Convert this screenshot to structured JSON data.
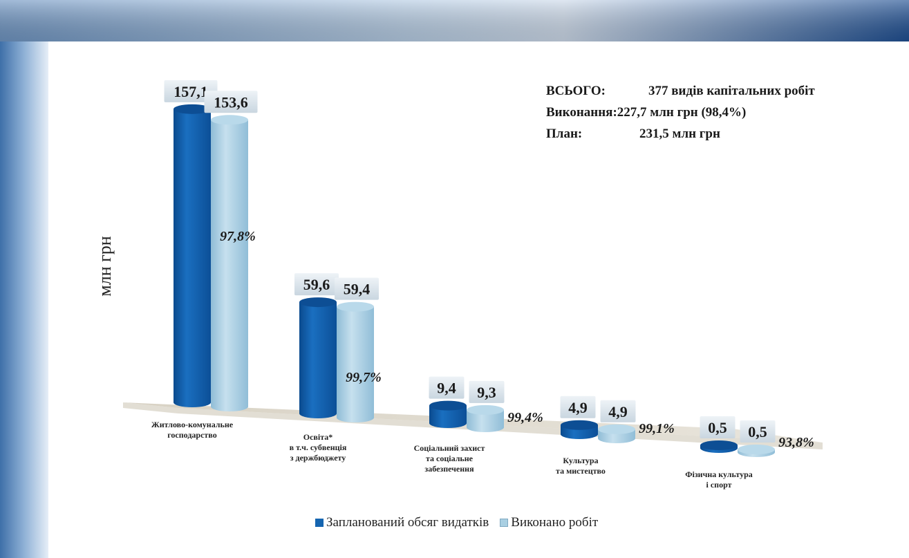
{
  "chart_data": {
    "type": "bar",
    "ylabel": "млн грн",
    "categories": [
      [
        "Житлово-комунальне",
        "господарство"
      ],
      [
        "Освіта*",
        "в т.ч. субвенція",
        "з держбюджету"
      ],
      [
        "Соціальний захист",
        "та соціальне",
        "забезпечення"
      ],
      [
        "Культура",
        "та мистецтво"
      ],
      [
        "Фізична культура",
        "і спорт"
      ]
    ],
    "series": [
      {
        "name": "Запланований обсяг видатків",
        "values": [
          157.1,
          59.6,
          9.4,
          4.9,
          0.5
        ],
        "labels": [
          "157,1",
          "59,6",
          "9,4",
          "4,9",
          "0,5"
        ]
      },
      {
        "name": "Виконано робіт",
        "values": [
          153.6,
          59.4,
          9.3,
          4.9,
          0.5
        ],
        "labels": [
          "153,6",
          "59,4",
          "9,3",
          "4,9",
          "0,5"
        ]
      }
    ],
    "percent_labels": [
      "97,8%",
      "99,7%",
      "99,4%",
      "99,1%",
      "93,8%"
    ],
    "colors": {
      "planned": "#1565b0",
      "done": "#a9cfe2"
    },
    "ylim": [
      0,
      160
    ]
  },
  "summary": {
    "rows": [
      {
        "label": "ВСЬОГО:",
        "value": "377 видів капітальних робіт"
      },
      {
        "label": "Виконання:",
        "value": "227,7 млн грн (98,4%)"
      },
      {
        "label": "План:",
        "value": "231,5 млн грн"
      }
    ]
  },
  "legend": {
    "items": [
      {
        "label": "Запланований обсяг видатків",
        "color": "#1565b0"
      },
      {
        "label": "Виконано робіт",
        "color": "#a9cfe2"
      }
    ]
  }
}
